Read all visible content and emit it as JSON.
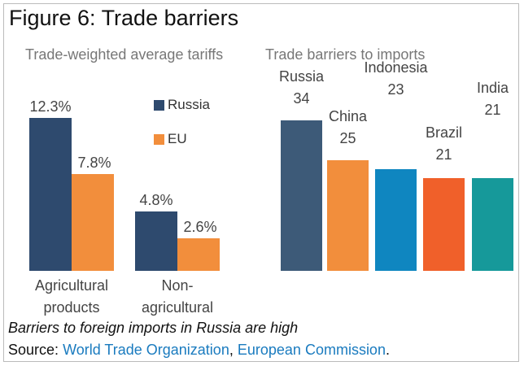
{
  "title": "Figure 6: Trade barriers",
  "caption": "Barriers to foreign imports in Russia are high",
  "source": {
    "label": "Source:",
    "links": [
      "World Trade Organization",
      "European Commission"
    ],
    "separator": ",",
    "end": "."
  },
  "chart_data": [
    {
      "type": "grouped_bar",
      "title": "Trade-weighted average tariffs",
      "categories": [
        "Agricultural products",
        "Non-agricultural"
      ],
      "series": [
        {
          "name": "Russia",
          "color": "#2e4a6e",
          "values": [
            12.3,
            4.8
          ],
          "value_labels": [
            "12.3%",
            "4.8%"
          ]
        },
        {
          "name": "EU",
          "color": "#f28e3c",
          "values": [
            7.8,
            2.6
          ],
          "value_labels": [
            "7.8%",
            "2.6%"
          ]
        }
      ],
      "ylim": [
        0,
        14
      ]
    },
    {
      "type": "bar",
      "title": "Trade barriers to imports",
      "categories": [
        "Russia",
        "China",
        "Indonesia",
        "Brazil",
        "India"
      ],
      "values": [
        34,
        25,
        23,
        21,
        21
      ],
      "colors": [
        "#3d5a78",
        "#f28e3c",
        "#0f86c0",
        "#f0602a",
        "#16999a"
      ],
      "ylim": [
        0,
        40
      ]
    }
  ]
}
